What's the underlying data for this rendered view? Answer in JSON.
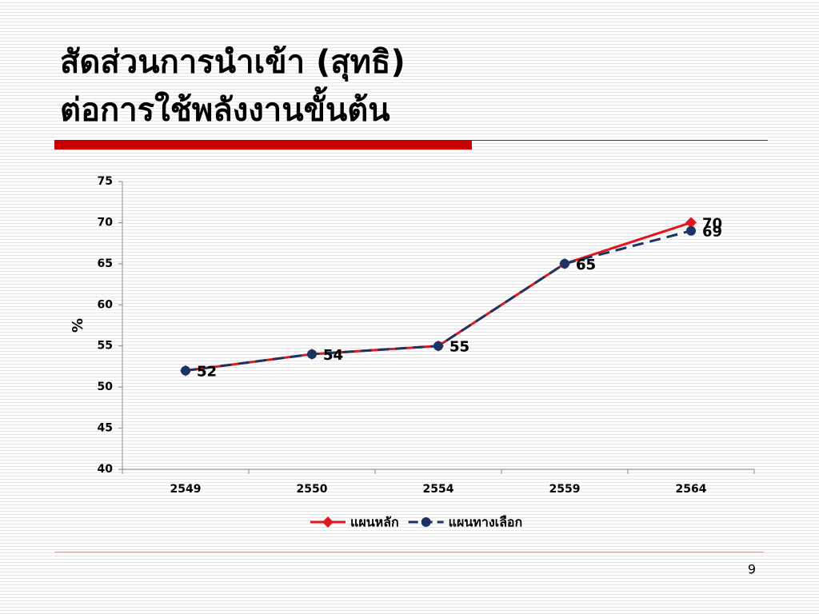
{
  "slide": {
    "title_lines": [
      "สัดส่วนการนำเข้า (สุทธิ)",
      "ต่อการใช้พลังงานขั้นต้น"
    ],
    "page_number": 9
  },
  "chart_data": {
    "type": "line",
    "y_label": "%",
    "categories": [
      "2549",
      "2550",
      "2554",
      "2559",
      "2564"
    ],
    "series": [
      {
        "name": "แผนหลัก",
        "color": "#e3161d",
        "marker": "diamond",
        "dashed": false,
        "values": [
          52,
          54,
          55,
          65,
          70
        ]
      },
      {
        "name": "แผนทางเลือก",
        "color": "#1c3461",
        "marker": "circle",
        "dashed": true,
        "values": [
          52,
          54,
          55,
          65,
          69
        ]
      }
    ],
    "ylim": [
      40,
      75
    ],
    "yticks": [
      40,
      45,
      50,
      55,
      60,
      65,
      70,
      75
    ],
    "grid": false,
    "legend": "bottom"
  }
}
